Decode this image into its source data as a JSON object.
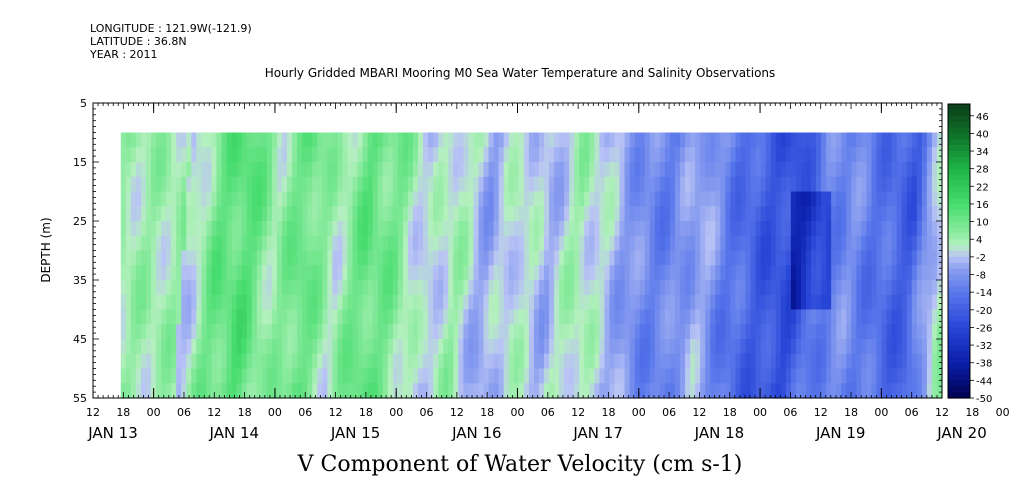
{
  "header": {
    "longitude": "LONGITUDE : 121.9W(-121.9)",
    "latitude": "LATITUDE : 36.8N",
    "year": "YEAR : 2011"
  },
  "chart_data": {
    "type": "heatmap",
    "title": "Hourly Gridded MBARI Mooring M0 Sea Water Temperature and Salinity Observations",
    "xlabel": "V Component of Water Velocity (cm s-1)",
    "ylabel": "DEPTH (m)",
    "ylim": [
      55,
      5
    ],
    "y_ticks": [
      5,
      15,
      25,
      35,
      45,
      55
    ],
    "data_depth_range": [
      10,
      55
    ],
    "x_range_hours": {
      "start": "JAN 13 12",
      "end": "JAN 20 12"
    },
    "x_hour_ticks": [
      "12",
      "18",
      "00",
      "06",
      "12",
      "18",
      "00",
      "06",
      "12",
      "18",
      "00",
      "06",
      "12",
      "18",
      "00",
      "06",
      "12",
      "18",
      "00",
      "06",
      "12",
      "18",
      "00",
      "06",
      "12",
      "18",
      "00",
      "06",
      "12",
      "18",
      "00",
      "06",
      "12"
    ],
    "x_day_labels": [
      "JAN 13",
      "JAN 14",
      "JAN 15",
      "JAN 16",
      "JAN 17",
      "JAN 18",
      "JAN 19",
      "JAN 20"
    ],
    "colorbar": {
      "labels": [
        "46",
        "40",
        "34",
        "28",
        "22",
        "16",
        "10",
        "4",
        "-2",
        "-8",
        "-14",
        "-20",
        "-26",
        "-32",
        "-38",
        "-44",
        "-50"
      ],
      "range": [
        -50,
        50
      ],
      "colors_high": "#0a3d1a",
      "colors_low": "#000066"
    },
    "velocity_profile": [
      {
        "hour": 18,
        "v": -4
      },
      {
        "hour": 24,
        "v": 10
      },
      {
        "hour": 30,
        "v": 14
      },
      {
        "hour": 36,
        "v": 4
      },
      {
        "hour": 42,
        "v": 12
      },
      {
        "hour": 48,
        "v": 2
      },
      {
        "hour": 54,
        "v": 12
      },
      {
        "hour": 60,
        "v": 8
      },
      {
        "hour": 66,
        "v": -2
      },
      {
        "hour": 72,
        "v": 4
      },
      {
        "hour": 78,
        "v": -6
      },
      {
        "hour": 84,
        "v": 2
      },
      {
        "hour": 90,
        "v": -4
      },
      {
        "hour": 96,
        "v": 4
      },
      {
        "hour": 102,
        "v": -2
      },
      {
        "hour": 108,
        "v": -10
      },
      {
        "hour": 114,
        "v": -12
      },
      {
        "hour": 120,
        "v": -4
      },
      {
        "hour": 126,
        "v": -14
      },
      {
        "hour": 132,
        "v": -20
      },
      {
        "hour": 138,
        "v": -24
      },
      {
        "hour": 144,
        "v": -12
      },
      {
        "hour": 150,
        "v": -10
      },
      {
        "hour": 156,
        "v": -16
      },
      {
        "hour": 162,
        "v": -20
      },
      {
        "hour": 168,
        "v": 4
      }
    ]
  }
}
